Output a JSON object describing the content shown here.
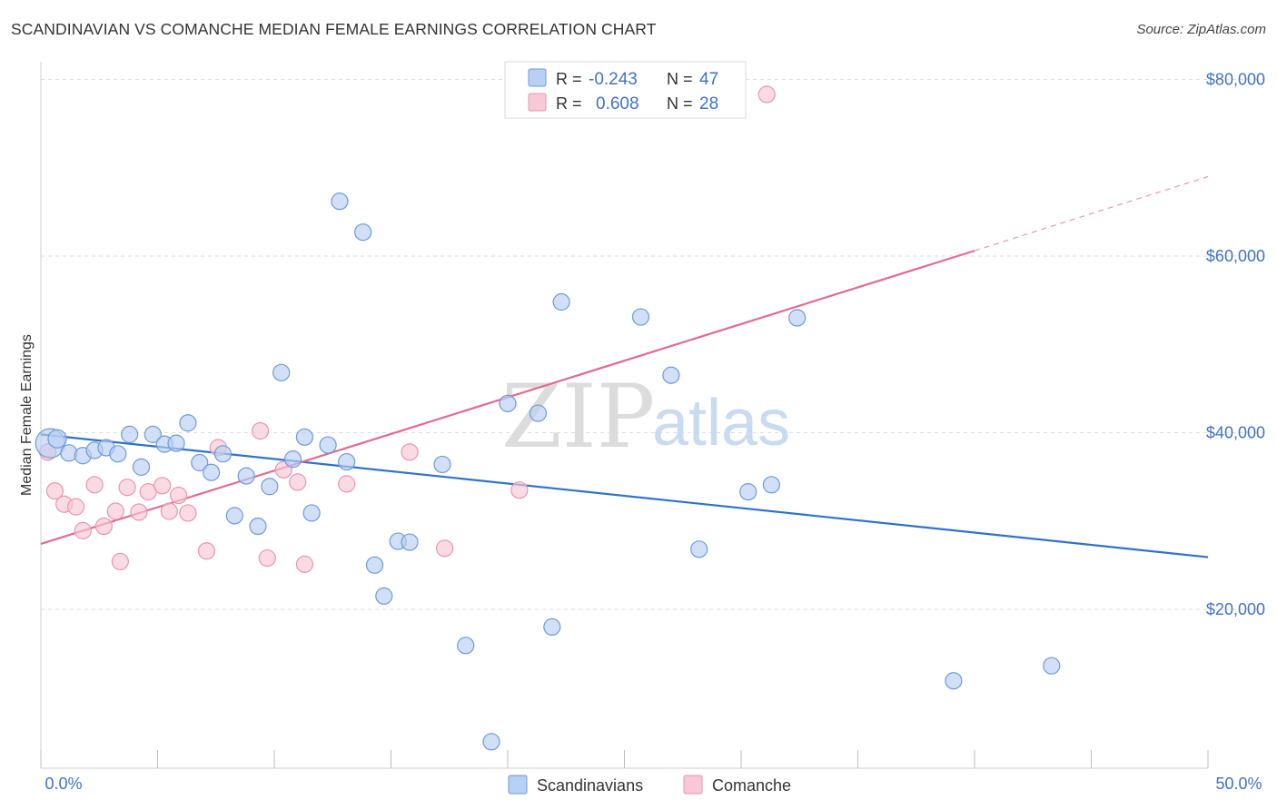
{
  "header": {
    "title": "SCANDINAVIAN VS COMANCHE MEDIAN FEMALE EARNINGS CORRELATION CHART",
    "source": "Source: ZipAtlas.com"
  },
  "colors": {
    "blue_fill": "#b8d0f2",
    "blue_stroke": "#6e9ad8",
    "blue_line": "#2f72cc",
    "pink_fill": "#f8c8d6",
    "pink_stroke": "#e896b0",
    "pink_line": "#e26a93",
    "grid": "#dedede",
    "axis_text": "#3f72c6"
  },
  "watermark": {
    "zip": "ZIP",
    "atlas": "atlas"
  },
  "chart_data": {
    "type": "scatter",
    "title": "SCANDINAVIAN VS COMANCHE MEDIAN FEMALE EARNINGS CORRELATION CHART",
    "xlabel": "",
    "ylabel": "Median Female Earnings",
    "xlim": [
      0,
      50
    ],
    "ylim": [
      2000,
      82000
    ],
    "x_tick_labels": {
      "left": "0.0%",
      "right": "50.0%"
    },
    "y_ticks": [
      {
        "value": 20000,
        "label": "$20,000"
      },
      {
        "value": 40000,
        "label": "$40,000"
      },
      {
        "value": 60000,
        "label": "$60,000"
      },
      {
        "value": 80000,
        "label": "$80,000"
      }
    ],
    "legend": {
      "rows": [
        {
          "r_label": "R =",
          "r_value": "-0.243",
          "n_label": "N =",
          "n_value": "47"
        },
        {
          "r_label": "R =",
          "r_value": "0.608",
          "n_label": "N =",
          "n_value": "28"
        }
      ]
    },
    "bottom_legend": [
      "Scandinavians",
      "Comanche"
    ],
    "series": [
      {
        "name": "Scandinavians",
        "trend": {
          "x0": 0,
          "y0": 39800,
          "x1": 50,
          "y1": 25900
        },
        "points": [
          [
            0.4,
            38800,
            16
          ],
          [
            0.7,
            39300,
            10
          ],
          [
            1.2,
            37700,
            9
          ],
          [
            1.8,
            37400,
            9
          ],
          [
            2.3,
            38000,
            9
          ],
          [
            2.8,
            38300,
            9
          ],
          [
            3.3,
            37600,
            9
          ],
          [
            3.8,
            39800,
            9
          ],
          [
            4.3,
            36100,
            9
          ],
          [
            4.8,
            39800,
            9
          ],
          [
            5.3,
            38700,
            9
          ],
          [
            5.8,
            38800,
            9
          ],
          [
            6.3,
            41100,
            9
          ],
          [
            6.8,
            36600,
            9
          ],
          [
            7.3,
            35500,
            9
          ],
          [
            7.8,
            37600,
            9
          ],
          [
            8.3,
            30600,
            9
          ],
          [
            8.8,
            35100,
            9
          ],
          [
            9.3,
            29400,
            9
          ],
          [
            9.8,
            33900,
            9
          ],
          [
            10.3,
            46800,
            9
          ],
          [
            10.8,
            37000,
            9
          ],
          [
            11.3,
            39500,
            9
          ],
          [
            11.6,
            30900,
            9
          ],
          [
            12.3,
            38600,
            9
          ],
          [
            12.8,
            66200,
            9
          ],
          [
            13.1,
            36700,
            9
          ],
          [
            13.8,
            62700,
            9
          ],
          [
            14.3,
            25000,
            9
          ],
          [
            14.7,
            21500,
            9
          ],
          [
            15.3,
            27700,
            9
          ],
          [
            15.8,
            27600,
            9
          ],
          [
            17.2,
            36400,
            9
          ],
          [
            18.2,
            15900,
            9
          ],
          [
            19.3,
            5000,
            9
          ],
          [
            20.0,
            43300,
            9
          ],
          [
            21.3,
            42200,
            9
          ],
          [
            21.9,
            18000,
            9
          ],
          [
            22.3,
            54800,
            9
          ],
          [
            25.7,
            53100,
            9
          ],
          [
            27.0,
            46500,
            9
          ],
          [
            28.2,
            26800,
            9
          ],
          [
            30.3,
            33300,
            9
          ],
          [
            31.3,
            34100,
            9
          ],
          [
            32.4,
            53000,
            9
          ],
          [
            39.1,
            11900,
            9
          ],
          [
            43.3,
            13600,
            9
          ]
        ]
      },
      {
        "name": "Comanche",
        "trend": {
          "x0": 0,
          "y0": 27400,
          "x1": 40,
          "y1": 60600,
          "dash_to_x": 50,
          "dash_to_y": 69000
        },
        "points": [
          [
            0.3,
            37800,
            9
          ],
          [
            0.6,
            33400,
            9
          ],
          [
            1.0,
            31900,
            9
          ],
          [
            1.5,
            31600,
            9
          ],
          [
            1.8,
            28900,
            9
          ],
          [
            2.3,
            34100,
            9
          ],
          [
            2.7,
            29400,
            9
          ],
          [
            3.2,
            31100,
            9
          ],
          [
            3.4,
            25400,
            9
          ],
          [
            3.7,
            33800,
            9
          ],
          [
            4.2,
            31000,
            9
          ],
          [
            4.6,
            33300,
            9
          ],
          [
            5.2,
            34000,
            9
          ],
          [
            5.5,
            31100,
            9
          ],
          [
            5.9,
            32900,
            9
          ],
          [
            6.3,
            30900,
            9
          ],
          [
            7.1,
            26600,
            9
          ],
          [
            7.6,
            38300,
            9
          ],
          [
            9.4,
            40200,
            9
          ],
          [
            9.7,
            25800,
            9
          ],
          [
            10.4,
            35800,
            9
          ],
          [
            11.0,
            34400,
            9
          ],
          [
            11.3,
            25100,
            9
          ],
          [
            13.1,
            34200,
            9
          ],
          [
            15.8,
            37800,
            9
          ],
          [
            17.3,
            26900,
            9
          ],
          [
            20.5,
            33500,
            9
          ],
          [
            31.1,
            78300,
            9
          ]
        ]
      }
    ]
  }
}
